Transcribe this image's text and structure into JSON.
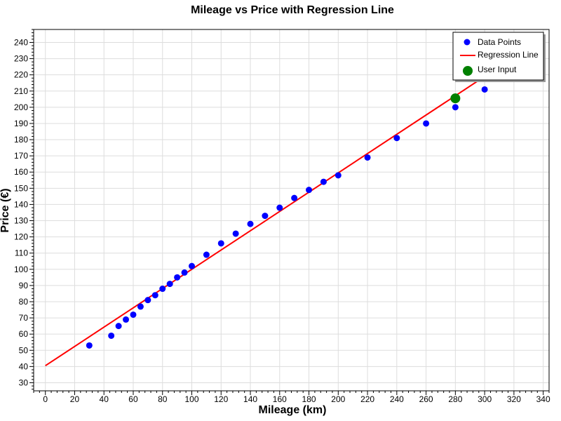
{
  "chart_data": {
    "type": "scatter",
    "title": "Mileage vs Price with Regression Line",
    "xlabel": "Mileage (km)",
    "ylabel": "Price (€)",
    "xlim": [
      -8,
      344
    ],
    "ylim": [
      25,
      248
    ],
    "xticks": [
      0,
      20,
      40,
      60,
      80,
      100,
      120,
      140,
      160,
      180,
      200,
      220,
      240,
      260,
      280,
      300,
      320,
      340
    ],
    "yticks": [
      30,
      40,
      50,
      60,
      70,
      80,
      90,
      100,
      110,
      120,
      130,
      140,
      150,
      160,
      170,
      180,
      190,
      200,
      210,
      220,
      230,
      240
    ],
    "grid": true,
    "legend_position": "top-right",
    "colors": {
      "data_points": "#0000ff",
      "regression_line": "#ff0000",
      "user_input": "#008000"
    },
    "series": [
      {
        "name": "Data Points",
        "kind": "points",
        "x": [
          30,
          45,
          50,
          55,
          60,
          65,
          70,
          75,
          80,
          85,
          90,
          95,
          100,
          110,
          120,
          130,
          140,
          150,
          160,
          170,
          180,
          190,
          200,
          220,
          240,
          260,
          280,
          300
        ],
        "y": [
          53,
          59,
          65,
          69,
          72,
          77,
          81,
          84,
          88,
          91,
          95,
          98,
          102,
          109,
          116,
          122,
          128,
          133,
          138,
          144,
          149,
          154,
          158,
          169,
          181,
          190,
          200,
          211
        ]
      },
      {
        "name": "Regression Line",
        "kind": "line",
        "x": [
          0,
          300
        ],
        "y": [
          40.5,
          219
        ]
      },
      {
        "name": "User Input",
        "kind": "points",
        "x": [
          280
        ],
        "y": [
          205.5
        ]
      }
    ]
  }
}
